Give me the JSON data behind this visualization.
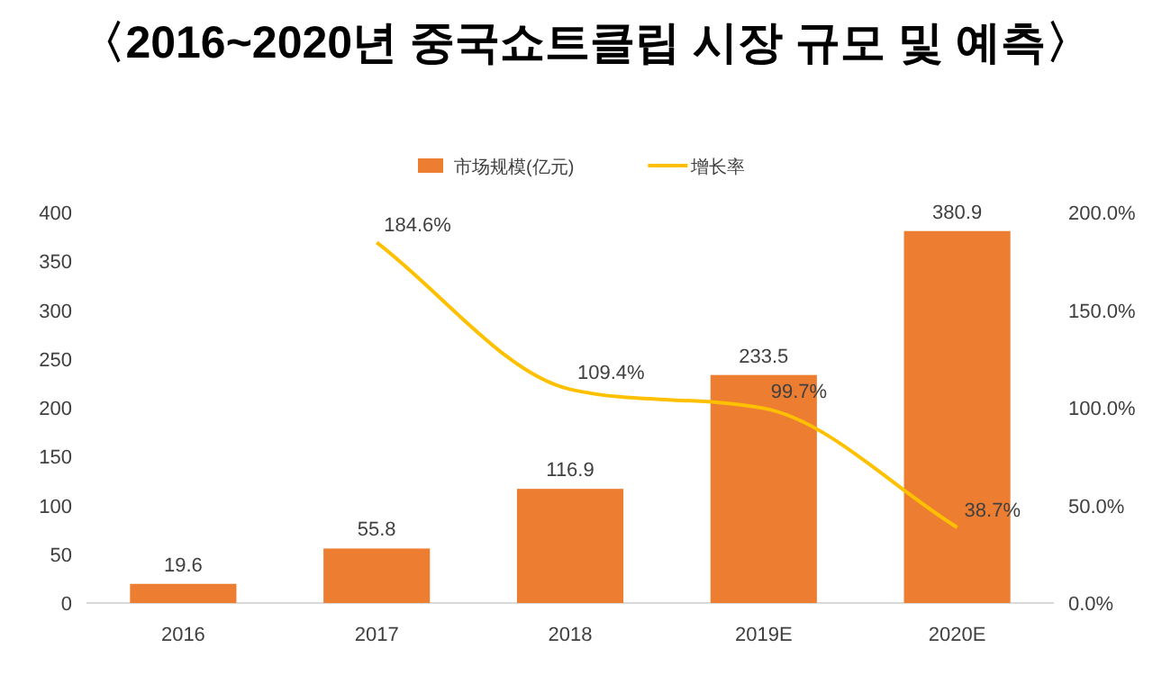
{
  "chart_data": {
    "type": "bar",
    "title": "〈2016~2020년 중국쇼트클립 시장 규모 및 예측〉",
    "categories": [
      "2016",
      "2017",
      "2018",
      "2019E",
      "2020E"
    ],
    "series": [
      {
        "name": "市场规模(亿元)",
        "color": "#ed7d31",
        "values": [
          19.6,
          55.8,
          116.9,
          233.5,
          380.9
        ],
        "value_labels": [
          "19.6",
          "55.8",
          "116.9",
          "233.5",
          "380.9"
        ]
      },
      {
        "name": "增长率",
        "type": "line",
        "axis": "y2",
        "color": "#ffc000",
        "values": [
          null,
          184.6,
          109.4,
          99.7,
          38.7
        ],
        "value_labels": [
          null,
          "184.6%",
          "109.4%",
          "99.7%",
          "38.7%"
        ]
      }
    ],
    "ylim": [
      0,
      400
    ],
    "yticks": [
      0,
      50,
      100,
      150,
      200,
      250,
      300,
      350,
      400
    ],
    "y2lim": [
      0,
      200
    ],
    "y2ticks": [
      {
        "value": 0,
        "label": "0.0%"
      },
      {
        "value": 50,
        "label": "50.0%"
      },
      {
        "value": 100,
        "label": "100.0%"
      },
      {
        "value": 150,
        "label": "150.0%"
      },
      {
        "value": 200,
        "label": "200.0%"
      }
    ],
    "legend": "top",
    "grid": false,
    "marker": "none"
  }
}
